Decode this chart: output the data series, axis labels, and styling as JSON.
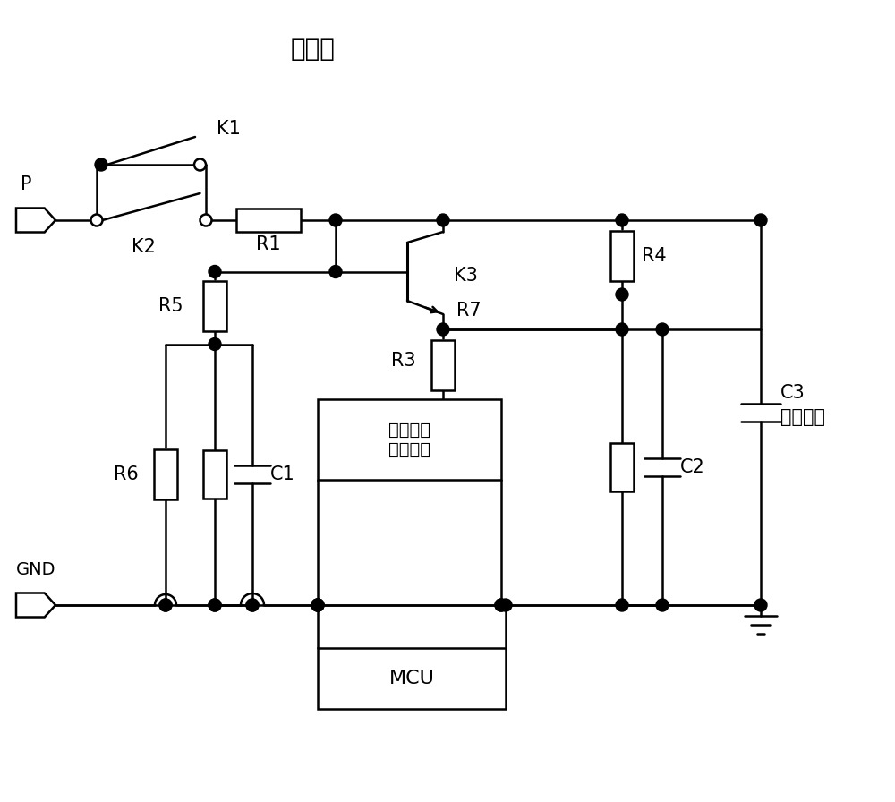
{
  "bg_color": "#ffffff",
  "lw": 1.8,
  "labels": {
    "precharge": "预充电",
    "K1": "K1",
    "K2": "K2",
    "K3": "K3",
    "R1": "R1",
    "R3": "R3",
    "R4": "R4",
    "R5": "R5",
    "R6": "R6",
    "R7": "R7",
    "C1": "C1",
    "C2": "C2",
    "C3": "C3",
    "P": "P",
    "GND": "GND",
    "source": "恒流源或\n者恒压源",
    "MCU": "MCU",
    "bus_cap": "母线电容"
  },
  "fs_title": 20,
  "fs": 15
}
